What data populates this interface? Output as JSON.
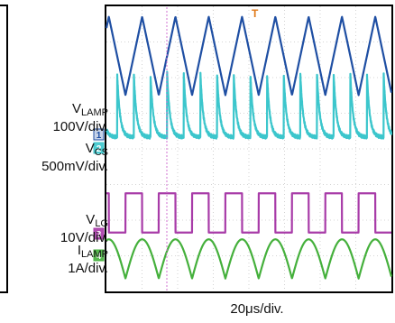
{
  "chart_data": {
    "type": "line",
    "title": "",
    "timebase": "20μs/div.",
    "grid": true,
    "divisions": {
      "x": 8,
      "y": 8
    },
    "x_range_us": [
      0,
      160
    ],
    "series": [
      {
        "name": "V",
        "sub": "LAMP",
        "scale": "100V/div.",
        "marker": "1",
        "color": "#1f4fa3",
        "wave": "triangle",
        "period_us": 18.7,
        "amplitude_div": 1.1
      },
      {
        "name": "V",
        "sub": "CS",
        "scale": "500mV/div.",
        "marker": "2",
        "color": "#3cc6cc",
        "wave": "current-sense spikes",
        "period_us": 18.7,
        "amplitude_div": 0.9
      },
      {
        "name": "V",
        "sub": "LG",
        "scale": "10V/div.",
        "marker": "3",
        "color": "#a83ba8",
        "wave": "square",
        "period_us": 18.7,
        "amplitude_div": 0.55
      },
      {
        "name": "I",
        "sub": "LAMP",
        "scale": "1A/div.",
        "marker": "4",
        "color": "#45b03c",
        "wave": "rectified sine",
        "period_us": 18.7,
        "amplitude_div": 0.55
      }
    ],
    "trigger_marker": "T"
  }
}
